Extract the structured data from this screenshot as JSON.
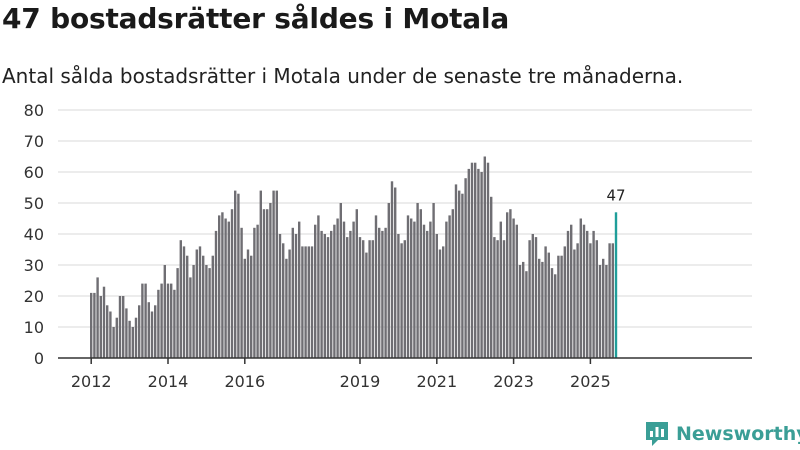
{
  "header": {
    "title": "47 bostadsrätter såldes i Motala",
    "subtitle": "Antal sålda bostadsrätter i Motala under de senaste tre månaderna."
  },
  "brand": {
    "name": "Newsworthy",
    "color": "#3a9e96",
    "icon": "bar-chart-icon"
  },
  "colors": {
    "bars": "#6f6e73",
    "highlight": "#1f9e9a",
    "grid": "#d9d9d9",
    "axis": "#333333"
  },
  "chart_data": {
    "type": "bar",
    "title": "47 bostadsrätter såldes i Motala",
    "subtitle": "Antal sålda bostadsrätter i Motala under de senaste tre månaderna.",
    "xlabel": "",
    "ylabel": "",
    "ylim": [
      0,
      80
    ],
    "yticks": [
      0,
      10,
      20,
      30,
      40,
      50,
      60,
      70,
      80
    ],
    "xtick_labels": [
      {
        "label": "2012",
        "index": 0
      },
      {
        "label": "2014",
        "index": 24
      },
      {
        "label": "2016",
        "index": 48
      },
      {
        "label": "2019",
        "index": 84
      },
      {
        "label": "2021",
        "index": 108
      },
      {
        "label": "2023",
        "index": 132
      },
      {
        "label": "2025",
        "index": 156
      }
    ],
    "highlight_annotation": "47",
    "values": [
      21,
      21,
      26,
      20,
      23,
      17,
      15,
      10,
      13,
      20,
      20,
      16,
      12,
      10,
      13,
      17,
      24,
      24,
      18,
      15,
      17,
      22,
      24,
      30,
      24,
      24,
      22,
      29,
      38,
      36,
      33,
      26,
      30,
      35,
      36,
      33,
      30,
      29,
      33,
      41,
      46,
      47,
      45,
      44,
      48,
      54,
      53,
      42,
      32,
      35,
      33,
      42,
      43,
      54,
      48,
      48,
      50,
      54,
      54,
      40,
      37,
      32,
      35,
      42,
      40,
      44,
      36,
      36,
      36,
      36,
      43,
      46,
      41,
      40,
      39,
      41,
      43,
      45,
      50,
      44,
      39,
      41,
      44,
      48,
      39,
      38,
      34,
      38,
      38,
      46,
      42,
      41,
      42,
      50,
      57,
      55,
      40,
      37,
      38,
      46,
      45,
      44,
      50,
      48,
      43,
      41,
      44,
      50,
      40,
      35,
      36,
      44,
      46,
      48,
      56,
      54,
      53,
      58,
      61,
      63,
      63,
      61,
      60,
      65,
      63,
      52,
      39,
      38,
      44,
      38,
      47,
      48,
      45,
      43,
      30,
      31,
      28,
      38,
      40,
      39,
      32,
      31,
      36,
      34,
      29,
      27,
      33,
      33,
      36,
      41,
      43,
      35,
      37,
      45,
      43,
      41,
      37,
      41,
      38,
      30,
      32,
      30,
      37,
      37,
      47
    ]
  }
}
